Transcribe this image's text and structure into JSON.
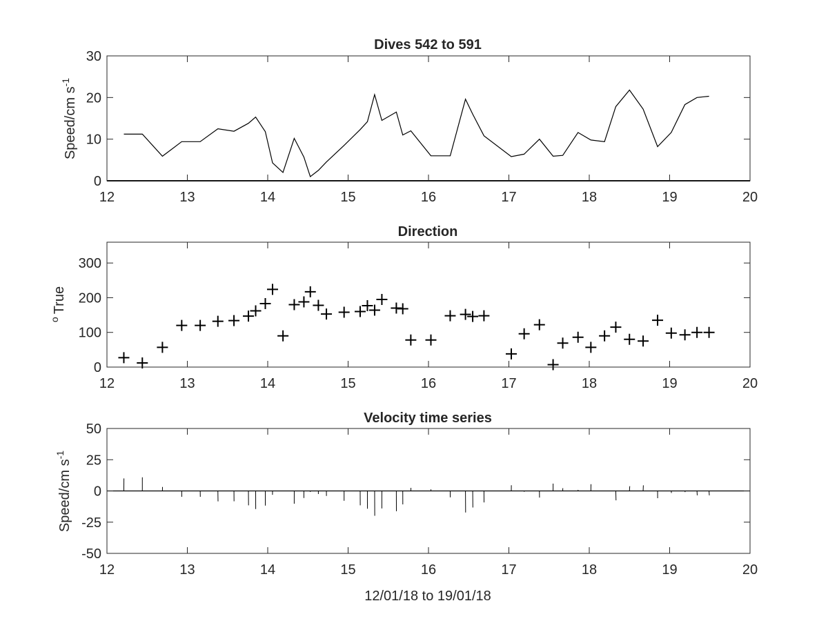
{
  "chart_data": [
    {
      "type": "line",
      "title": "Dives 542 to 591",
      "xlabel": "",
      "ylabel": "Speed/cm s",
      "ylabel_sup": "-1",
      "xlim": [
        12,
        20
      ],
      "ylim": [
        0,
        30
      ],
      "xticks": [
        "12",
        "13",
        "14",
        "15",
        "16",
        "17",
        "18",
        "19",
        "20"
      ],
      "yticks": [
        "0",
        "10",
        "20",
        "30"
      ],
      "grid": false,
      "x": [
        12.21,
        12.44,
        12.69,
        12.93,
        13.16,
        13.38,
        13.58,
        13.76,
        13.85,
        13.97,
        14.06,
        14.19,
        14.33,
        14.45,
        14.53,
        14.63,
        14.73,
        14.95,
        15.15,
        15.24,
        15.33,
        15.42,
        15.6,
        15.68,
        15.78,
        16.03,
        16.27,
        16.46,
        16.55,
        16.69,
        17.03,
        17.19,
        17.38,
        17.55,
        17.67,
        17.86,
        18.02,
        18.19,
        18.33,
        18.5,
        18.67,
        18.85,
        19.02,
        19.19,
        19.34,
        19.49
      ],
      "series": [
        {
          "values": [
            11.2,
            11.2,
            5.9,
            9.4,
            9.4,
            12.5,
            11.9,
            13.8,
            15.3,
            11.8,
            4.3,
            2.0,
            10.2,
            5.7,
            1.0,
            2.5,
            4.5,
            8.5,
            12.3,
            14.2,
            20.7,
            14.5,
            16.5,
            11.0,
            12.0,
            6.0,
            6.0,
            19.6,
            16.0,
            10.8,
            5.8,
            6.4,
            10.0,
            5.9,
            6.1,
            11.6,
            9.8,
            9.4,
            17.8,
            21.8,
            17.2,
            8.2,
            11.6,
            18.3,
            20.0,
            20.3
          ]
        }
      ]
    },
    {
      "type": "scatter",
      "title": "Direction",
      "xlabel": "",
      "ylabel": "True",
      "ylabel_sup": "o",
      "xlim": [
        12,
        20
      ],
      "ylim": [
        0,
        360
      ],
      "xticks": [
        "12",
        "13",
        "14",
        "15",
        "16",
        "17",
        "18",
        "19",
        "20"
      ],
      "yticks": [
        "0",
        "100",
        "200",
        "300"
      ],
      "grid": false,
      "marker": "+",
      "x": [
        12.21,
        12.44,
        12.69,
        12.93,
        13.16,
        13.38,
        13.58,
        13.76,
        13.85,
        13.97,
        14.06,
        14.19,
        14.33,
        14.45,
        14.53,
        14.63,
        14.73,
        14.95,
        15.15,
        15.24,
        15.33,
        15.42,
        15.6,
        15.68,
        15.78,
        16.03,
        16.27,
        16.46,
        16.55,
        16.69,
        17.03,
        17.19,
        17.38,
        17.55,
        17.67,
        17.86,
        18.02,
        18.19,
        18.33,
        18.5,
        18.67,
        18.85,
        19.02,
        19.19,
        19.34,
        19.49
      ],
      "series": [
        {
          "values": [
            27,
            12,
            57,
            120,
            120,
            132,
            134,
            147,
            162,
            183,
            224,
            90,
            180,
            188,
            217,
            178,
            153,
            158,
            160,
            177,
            164,
            195,
            170,
            168,
            78,
            78,
            148,
            152,
            146,
            148,
            38,
            96,
            122,
            7,
            69,
            86,
            57,
            90,
            115,
            80,
            75,
            135,
            98,
            93,
            100,
            100
          ]
        }
      ]
    },
    {
      "type": "quiver",
      "title": "Velocity time series",
      "xlabel": "12/01/18 to 19/01/18",
      "ylabel": "Speed/cm s",
      "ylabel_sup": "-1",
      "xlim": [
        12,
        20
      ],
      "ylim": [
        -50,
        50
      ],
      "xticks": [
        "12",
        "13",
        "14",
        "15",
        "16",
        "17",
        "18",
        "19",
        "20"
      ],
      "yticks": [
        "-50",
        "-25",
        "0",
        "25",
        "50"
      ],
      "grid": false,
      "x": [
        12.21,
        12.44,
        12.69,
        12.93,
        13.16,
        13.38,
        13.58,
        13.76,
        13.85,
        13.97,
        14.06,
        14.19,
        14.33,
        14.45,
        14.53,
        14.63,
        14.73,
        14.95,
        15.15,
        15.24,
        15.33,
        15.42,
        15.6,
        15.68,
        15.78,
        16.03,
        16.27,
        16.46,
        16.55,
        16.69,
        17.03,
        17.19,
        17.38,
        17.55,
        17.67,
        17.86,
        18.02,
        18.19,
        18.33,
        18.5,
        18.67,
        18.85,
        19.02,
        19.19,
        19.34,
        19.49
      ],
      "speed": [
        11.2,
        11.2,
        5.9,
        9.4,
        9.4,
        12.5,
        11.9,
        13.8,
        15.3,
        11.8,
        4.3,
        2.0,
        10.2,
        5.7,
        1.0,
        2.5,
        4.5,
        8.5,
        12.3,
        14.2,
        20.7,
        14.5,
        16.5,
        11.0,
        12.0,
        6.0,
        6.0,
        19.6,
        16.0,
        10.8,
        5.8,
        6.4,
        10.0,
        5.9,
        6.1,
        11.6,
        9.8,
        9.4,
        17.8,
        21.8,
        17.2,
        8.2,
        11.6,
        18.3,
        20.0,
        20.3
      ],
      "direction_deg_true": [
        27,
        12,
        57,
        120,
        120,
        132,
        134,
        147,
        162,
        183,
        224,
        90,
        180,
        188,
        217,
        178,
        153,
        158,
        160,
        177,
        164,
        195,
        170,
        168,
        78,
        78,
        148,
        152,
        146,
        148,
        38,
        96,
        122,
        7,
        69,
        86,
        57,
        90,
        115,
        80,
        75,
        135,
        98,
        93,
        100,
        100
      ]
    }
  ],
  "colors": {
    "ink": "#000000",
    "axis": "#262626",
    "background": "#ffffff"
  }
}
